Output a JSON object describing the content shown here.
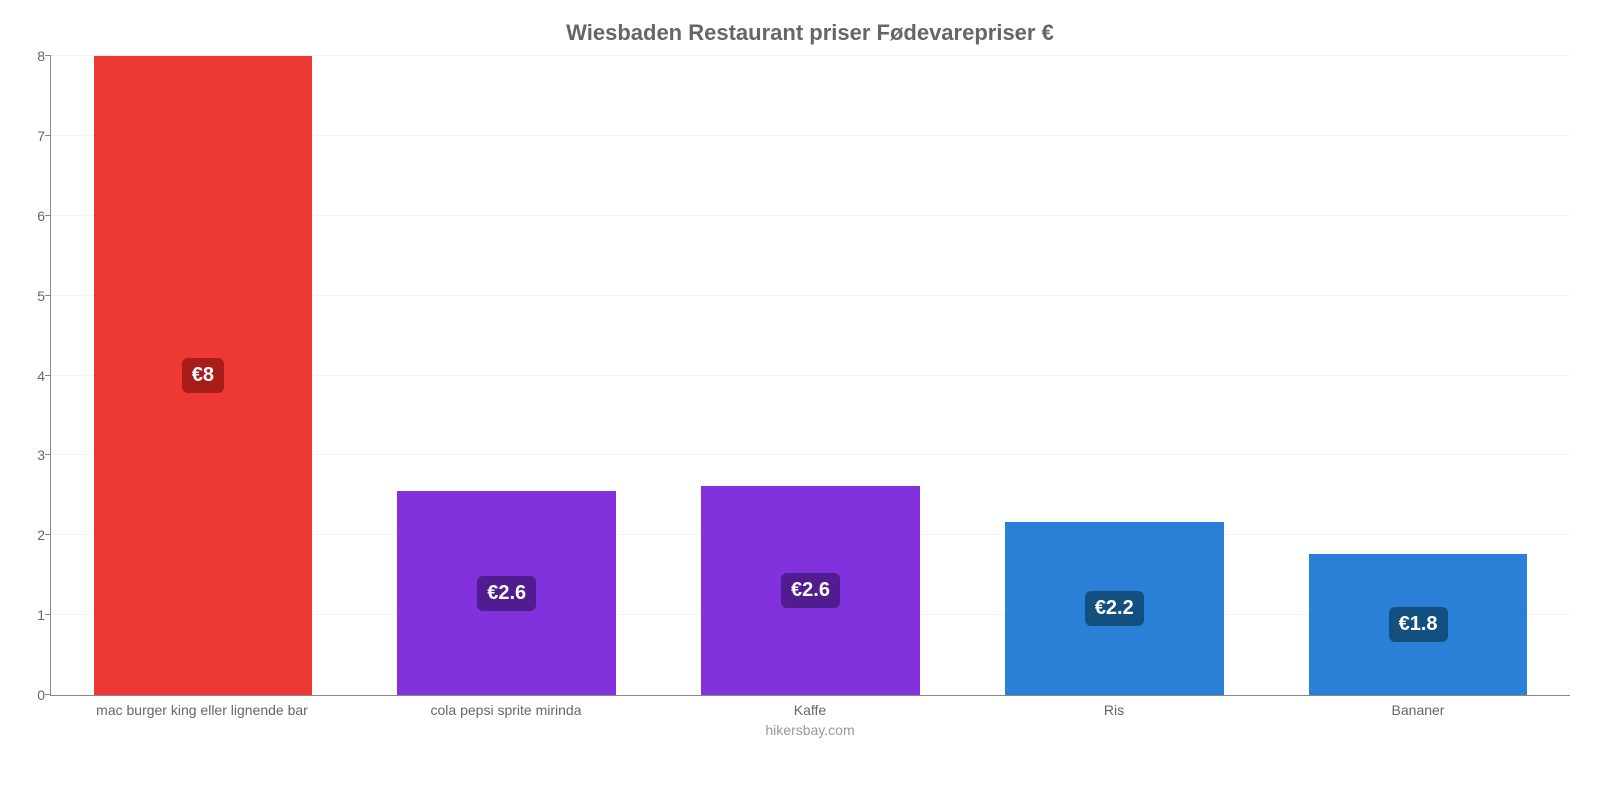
{
  "chart": {
    "type": "bar",
    "title": "Wiesbaden Restaurant priser Fødevarepriser €",
    "title_color": "#666666",
    "title_fontsize": 22,
    "credit": "hikersbay.com",
    "credit_color": "#999999",
    "credit_fontsize": 14,
    "background_color": "#ffffff",
    "grid_color": "#f4f4f4",
    "axis_color": "#888888",
    "tick_label_color": "#666666",
    "tick_fontsize": 14,
    "ylim": [
      0,
      8
    ],
    "ytick_step": 1,
    "bar_width": 0.72,
    "value_label_fontsize": 20,
    "value_label_text_color": "#ffffff",
    "value_label_radius": 6,
    "categories": [
      "mac burger king eller lignende bar",
      "cola pepsi sprite mirinda",
      "Kaffe",
      "Ris",
      "Bananer"
    ],
    "values": [
      8,
      2.55,
      2.62,
      2.17,
      1.77
    ],
    "value_labels": [
      "€8",
      "€2.6",
      "€2.6",
      "€2.2",
      "€1.8"
    ],
    "bar_colors": [
      "#ed3833",
      "#8132dd",
      "#8132dd",
      "#2980d6",
      "#2980d6"
    ],
    "value_label_bg": [
      "#a61d19",
      "#501c8f",
      "#501c8f",
      "#14507f",
      "#14507f"
    ]
  }
}
